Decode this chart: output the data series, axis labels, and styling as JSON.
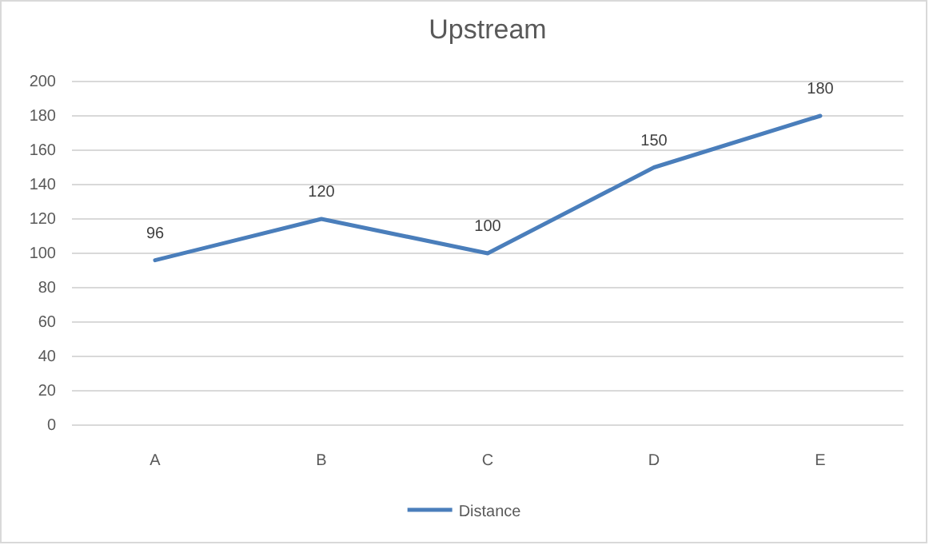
{
  "chart_data": {
    "type": "line",
    "title": "Upstream",
    "categories": [
      "A",
      "B",
      "C",
      "D",
      "E"
    ],
    "series": [
      {
        "name": "Distance",
        "color": "#4a7ebb",
        "values": [
          96,
          120,
          100,
          150,
          180
        ]
      }
    ],
    "ylim": [
      0,
      200
    ],
    "yticks": [
      0,
      20,
      40,
      60,
      80,
      100,
      120,
      140,
      160,
      180,
      200
    ],
    "grid": "y",
    "legend": "bottom",
    "data_labels": true,
    "marker": "none",
    "line_style": "solid"
  }
}
